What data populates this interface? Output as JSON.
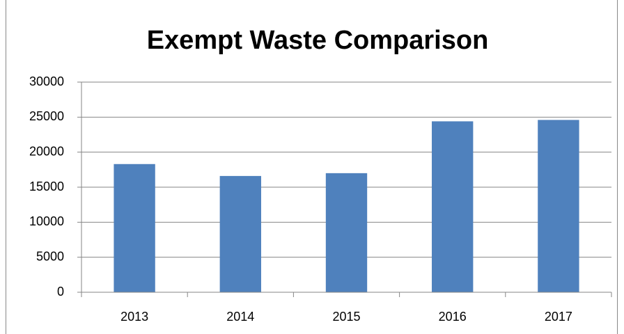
{
  "chart_data": {
    "type": "bar",
    "title": "Exempt Waste Comparison",
    "categories": [
      "2013",
      "2014",
      "2015",
      "2016",
      "2017"
    ],
    "values": [
      18300,
      16600,
      17000,
      24400,
      24600
    ],
    "color": "#4f81bd",
    "ylim": [
      0,
      30000
    ],
    "yticks": [
      0,
      5000,
      10000,
      15000,
      20000,
      25000,
      30000
    ],
    "grid": true
  }
}
